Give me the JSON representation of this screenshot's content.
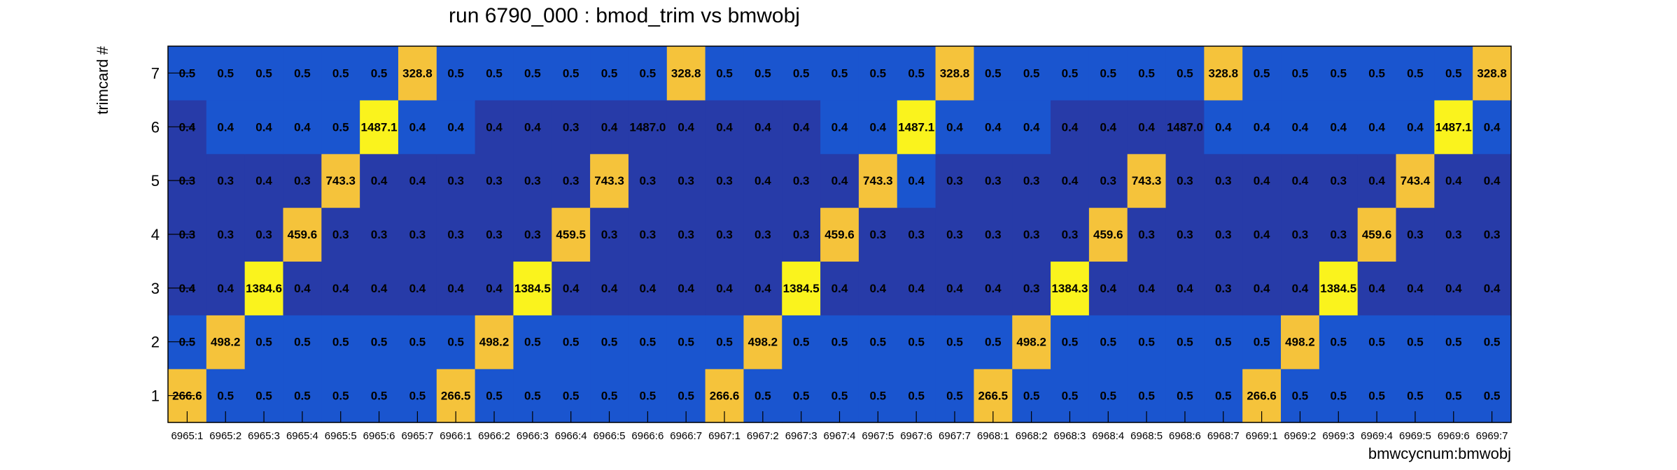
{
  "chart_data": {
    "type": "heatmap",
    "title": "run 6790_000 : bmod_trim vs bmwobj",
    "xlabel": "bmwcycnum:bmwobj",
    "ylabel": "trimcard #",
    "x_categories": [
      "6965:1",
      "6965:2",
      "6965:3",
      "6965:4",
      "6965:5",
      "6965:6",
      "6965:7",
      "6966:1",
      "6966:2",
      "6966:3",
      "6966:4",
      "6966:5",
      "6966:6",
      "6966:7",
      "6967:1",
      "6967:2",
      "6967:3",
      "6967:4",
      "6967:5",
      "6967:6",
      "6967:7",
      "6968:1",
      "6968:2",
      "6968:3",
      "6968:4",
      "6968:5",
      "6968:6",
      "6968:7",
      "6969:1",
      "6969:2",
      "6969:3",
      "6969:4",
      "6969:5",
      "6969:6",
      "6969:7"
    ],
    "y_categories": [
      "1",
      "2",
      "3",
      "4",
      "5",
      "6",
      "7"
    ],
    "values": [
      [
        "266.6",
        "0.5",
        "0.5",
        "0.5",
        "0.5",
        "0.5",
        "0.5",
        "266.5",
        "0.5",
        "0.5",
        "0.5",
        "0.5",
        "0.5",
        "0.5",
        "266.6",
        "0.5",
        "0.5",
        "0.5",
        "0.5",
        "0.5",
        "0.5",
        "266.5",
        "0.5",
        "0.5",
        "0.5",
        "0.5",
        "0.5",
        "0.5",
        "266.6",
        "0.5",
        "0.5",
        "0.5",
        "0.5",
        "0.5",
        "0.5"
      ],
      [
        "0.5",
        "498.2",
        "0.5",
        "0.5",
        "0.5",
        "0.5",
        "0.5",
        "0.5",
        "498.2",
        "0.5",
        "0.5",
        "0.5",
        "0.5",
        "0.5",
        "0.5",
        "498.2",
        "0.5",
        "0.5",
        "0.5",
        "0.5",
        "0.5",
        "0.5",
        "498.2",
        "0.5",
        "0.5",
        "0.5",
        "0.5",
        "0.5",
        "0.5",
        "498.2",
        "0.5",
        "0.5",
        "0.5",
        "0.5",
        "0.5"
      ],
      [
        "0.4",
        "0.4",
        "1384.6",
        "0.4",
        "0.4",
        "0.4",
        "0.4",
        "0.4",
        "0.4",
        "1384.5",
        "0.4",
        "0.4",
        "0.4",
        "0.4",
        "0.4",
        "0.4",
        "1384.5",
        "0.4",
        "0.4",
        "0.4",
        "0.4",
        "0.4",
        "0.3",
        "1384.3",
        "0.4",
        "0.4",
        "0.4",
        "0.3",
        "0.4",
        "0.4",
        "1384.5",
        "0.4",
        "0.4",
        "0.4",
        "0.4"
      ],
      [
        "0.3",
        "0.3",
        "0.3",
        "459.6",
        "0.3",
        "0.3",
        "0.3",
        "0.3",
        "0.3",
        "0.3",
        "459.5",
        "0.3",
        "0.3",
        "0.3",
        "0.3",
        "0.3",
        "0.3",
        "459.6",
        "0.3",
        "0.3",
        "0.3",
        "0.3",
        "0.3",
        "0.3",
        "459.6",
        "0.3",
        "0.3",
        "0.3",
        "0.4",
        "0.3",
        "0.3",
        "459.6",
        "0.3",
        "0.3",
        "0.3"
      ],
      [
        "0.3",
        "0.3",
        "0.4",
        "0.3",
        "743.3",
        "0.4",
        "0.4",
        "0.3",
        "0.3",
        "0.3",
        "0.3",
        "743.3",
        "0.3",
        "0.3",
        "0.3",
        "0.4",
        "0.3",
        "0.4",
        "743.3",
        "0.4",
        "0.3",
        "0.3",
        "0.3",
        "0.4",
        "0.3",
        "743.3",
        "0.3",
        "0.3",
        "0.4",
        "0.4",
        "0.3",
        "0.4",
        "743.4",
        "0.4",
        "0.4"
      ],
      [
        "0.4",
        "0.4",
        "0.4",
        "0.4",
        "0.5",
        "1487.1",
        "0.4",
        "0.4",
        "0.4",
        "0.4",
        "0.3",
        "0.4",
        "1487.0",
        "0.4",
        "0.4",
        "0.4",
        "0.4",
        "0.4",
        "0.4",
        "1487.1",
        "0.4",
        "0.4",
        "0.4",
        "0.4",
        "0.4",
        "0.4",
        "1487.0",
        "0.4",
        "0.4",
        "0.4",
        "0.4",
        "0.4",
        "0.4",
        "1487.1",
        "0.4"
      ],
      [
        "0.5",
        "0.5",
        "0.5",
        "0.5",
        "0.5",
        "0.5",
        "328.8",
        "0.5",
        "0.5",
        "0.5",
        "0.5",
        "0.5",
        "0.5",
        "328.8",
        "0.5",
        "0.5",
        "0.5",
        "0.5",
        "0.5",
        "0.5",
        "328.8",
        "0.5",
        "0.5",
        "0.5",
        "0.5",
        "0.5",
        "0.5",
        "328.8",
        "0.5",
        "0.5",
        "0.5",
        "0.5",
        "0.5",
        "0.5",
        "328.8"
      ]
    ],
    "colors": {
      "low": "#273ba8",
      "mid": "#1a55cf",
      "gold": "#f5c33b",
      "yellow": "#faf31d",
      "frame": "#000000"
    }
  }
}
